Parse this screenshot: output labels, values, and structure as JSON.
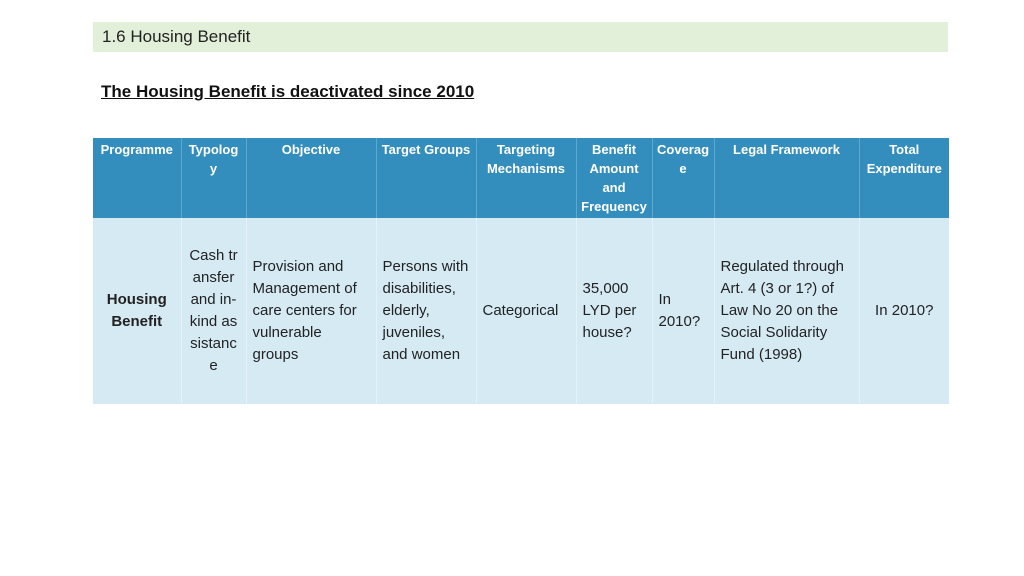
{
  "section": {
    "title": "1.6 Housing Benefit"
  },
  "heading": "The Housing Benefit is deactivated since 2010",
  "table": {
    "headers": {
      "programme": "Programme",
      "typology": "Typology",
      "objective": "Objective",
      "target_groups": "Target Groups",
      "targeting_mechanisms": "Targeting Mechanisms",
      "benefit": "Benefit Amount and Frequency",
      "coverage": "Coverage",
      "legal_framework": "Legal Framework",
      "total_expenditure": "Total Expenditure"
    },
    "row": {
      "programme": "Housing Benefit",
      "typology": "Cash transfer and in-kind assistance",
      "objective": "Provision and Management of care centers for vulnerable groups",
      "target_groups": "Persons with disabilities, elderly, juveniles, and women",
      "targeting_mechanisms": "Categorical",
      "benefit": "35,000 LYD per house?",
      "coverage": "In 2010?",
      "legal_framework": "Regulated through Art. 4 (3 or 1?) of Law No 20 on the Social Solidarity Fund (1998)",
      "total_expenditure": "In 2010?"
    }
  },
  "colors": {
    "section_bar": "#e2efd9",
    "header_bg": "#348ebd",
    "row_bg": "#d6eaf4"
  }
}
